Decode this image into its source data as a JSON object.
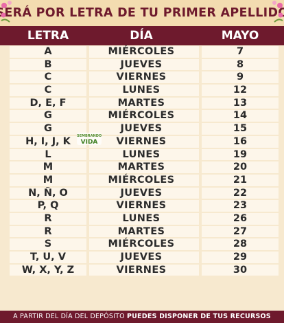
{
  "title": "SERÁ POR LETRA DE TU PRIMER APELLIDO",
  "headers": {
    "letra": "LETRA",
    "dia": "DÍA",
    "mes": "MAYO"
  },
  "watermark": {
    "top": "SEMBRANDO",
    "main": "VIDA"
  },
  "rows": [
    {
      "letra": "A",
      "dia": "MIÉRCOLES",
      "fecha": "7"
    },
    {
      "letra": "B",
      "dia": "JUEVES",
      "fecha": "8"
    },
    {
      "letra": "C",
      "dia": "VIERNES",
      "fecha": "9"
    },
    {
      "letra": "C",
      "dia": "LUNES",
      "fecha": "12"
    },
    {
      "letra": "D, E, F",
      "dia": "MARTES",
      "fecha": "13"
    },
    {
      "letra": "G",
      "dia": "MIÉRCOLES",
      "fecha": "14"
    },
    {
      "letra": "G",
      "dia": "JUEVES",
      "fecha": "15"
    },
    {
      "letra": "H, I, J, K",
      "dia": "VIERNES",
      "fecha": "16"
    },
    {
      "letra": "L",
      "dia": "LUNES",
      "fecha": "19"
    },
    {
      "letra": "M",
      "dia": "MARTES",
      "fecha": "20"
    },
    {
      "letra": "M",
      "dia": "MIÉRCOLES",
      "fecha": "21"
    },
    {
      "letra": "N, Ñ, O",
      "dia": "JUEVES",
      "fecha": "22"
    },
    {
      "letra": "P, Q",
      "dia": "VIERNES",
      "fecha": "23"
    },
    {
      "letra": "R",
      "dia": "LUNES",
      "fecha": "26"
    },
    {
      "letra": "R",
      "dia": "MARTES",
      "fecha": "27"
    },
    {
      "letra": "S",
      "dia": "MIÉRCOLES",
      "fecha": "28"
    },
    {
      "letra": "T, U, V",
      "dia": "JUEVES",
      "fecha": "29"
    },
    {
      "letra": "W, X, Y, Z",
      "dia": "VIERNES",
      "fecha": "30"
    }
  ],
  "footer": {
    "text": "A PARTIR DEL DÍA DEL DEPÓSITO",
    "bold": "PUEDES DISPONER DE TUS RECURSOS"
  },
  "colors": {
    "maroon": "#6e1a2d",
    "background": "#f7e9cf",
    "band": "#fdf6ea",
    "text": "#2b2b2b"
  }
}
